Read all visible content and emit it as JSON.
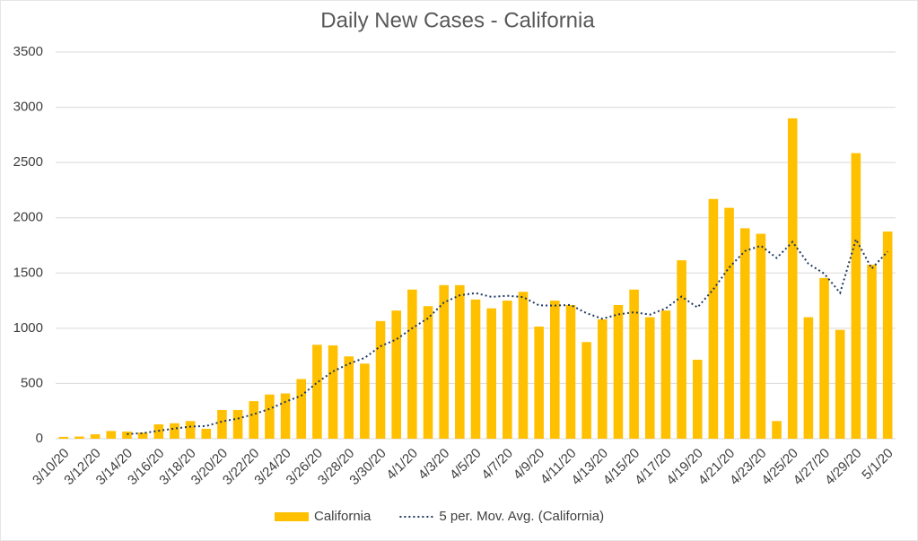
{
  "chart_data": {
    "type": "bar",
    "title": "Daily New Cases - California",
    "categories": [
      "3/10/20",
      null,
      "3/12/20",
      null,
      "3/14/20",
      null,
      "3/16/20",
      null,
      "3/18/20",
      null,
      "3/20/20",
      null,
      "3/22/20",
      null,
      "3/24/20",
      null,
      "3/26/20",
      null,
      "3/28/20",
      null,
      "3/30/20",
      null,
      "4/1/20",
      null,
      "4/3/20",
      null,
      "4/5/20",
      null,
      "4/7/20",
      null,
      "4/9/20",
      null,
      "4/11/20",
      null,
      "4/13/20",
      null,
      "4/15/20",
      null,
      "4/17/20",
      null,
      "4/19/20",
      null,
      "4/21/20",
      null,
      "4/23/20",
      null,
      "4/25/20",
      null,
      "4/27/20",
      null,
      "4/29/20",
      null,
      "5/1/20"
    ],
    "series": [
      {
        "name": "California",
        "type": "bar",
        "color": "#ffc000",
        "values": [
          17,
          20,
          40,
          70,
          65,
          55,
          130,
          140,
          160,
          90,
          260,
          260,
          340,
          400,
          410,
          540,
          850,
          845,
          745,
          680,
          1065,
          1160,
          1350,
          1200,
          1390,
          1390,
          1260,
          1180,
          1250,
          1330,
          1015,
          1250,
          1210,
          875,
          1080,
          1210,
          1350,
          1100,
          1160,
          1615,
          715,
          2170,
          2090,
          1905,
          1855,
          160,
          2900,
          1100,
          1455,
          985,
          2585,
          1575,
          1875
        ]
      },
      {
        "name": "5 per. Mov. Avg. (California)",
        "type": "line",
        "color": "#1f3864",
        "values": [
          null,
          null,
          null,
          null,
          42,
          50,
          72,
          92,
          110,
          115,
          156,
          182,
          222,
          270,
          334,
          390,
          508,
          609,
          678,
          732,
          837,
          899,
          1000,
          1091,
          1233,
          1298,
          1318,
          1284,
          1294,
          1282,
          1207,
          1205,
          1211,
          1136,
          1086,
          1125,
          1145,
          1123,
          1180,
          1287,
          1188,
          1352,
          1550,
          1699,
          1747,
          1636,
          1782,
          1584,
          1494,
          1320,
          1805,
          1540,
          1695
        ]
      }
    ],
    "ylim": [
      0,
      3500
    ],
    "yticks": [
      0,
      500,
      1000,
      1500,
      2000,
      2500,
      3000,
      3500
    ],
    "grid": true,
    "legend": "bottom"
  }
}
